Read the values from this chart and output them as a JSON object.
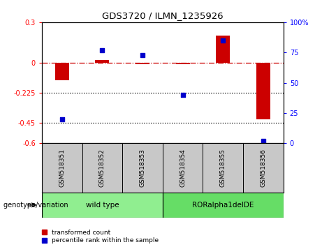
{
  "title": "GDS3720 / ILMN_1235926",
  "samples": [
    "GSM518351",
    "GSM518352",
    "GSM518353",
    "GSM518354",
    "GSM518355",
    "GSM518356"
  ],
  "transformed_count": [
    -0.13,
    0.02,
    -0.01,
    -0.01,
    0.2,
    -0.42
  ],
  "percentile_rank": [
    20,
    77,
    73,
    40,
    85,
    2
  ],
  "ylim_left": [
    -0.6,
    0.3
  ],
  "ylim_right": [
    0,
    100
  ],
  "yticks_left": [
    0.3,
    0,
    -0.225,
    -0.45,
    -0.6
  ],
  "yticks_right": [
    100,
    75,
    50,
    25,
    0
  ],
  "ytick_labels_left": [
    "0.3",
    "0",
    "-0.225",
    "-0.45",
    "-0.6"
  ],
  "ytick_labels_right": [
    "100%",
    "75",
    "50",
    "25",
    "0"
  ],
  "dotted_lines": [
    -0.225,
    -0.45
  ],
  "bar_color": "#CC0000",
  "dot_color": "#0000CC",
  "hline_color": "#CC0000",
  "dotted_color": "black",
  "bg_color": "white",
  "plot_bg": "white",
  "tick_area_bg": "#C8C8C8",
  "group_bg_wild": "#90EE90",
  "group_bg_ror": "#66DD66",
  "group_label": "genotype/variation",
  "legend_red": "transformed count",
  "legend_blue": "percentile rank within the sample"
}
